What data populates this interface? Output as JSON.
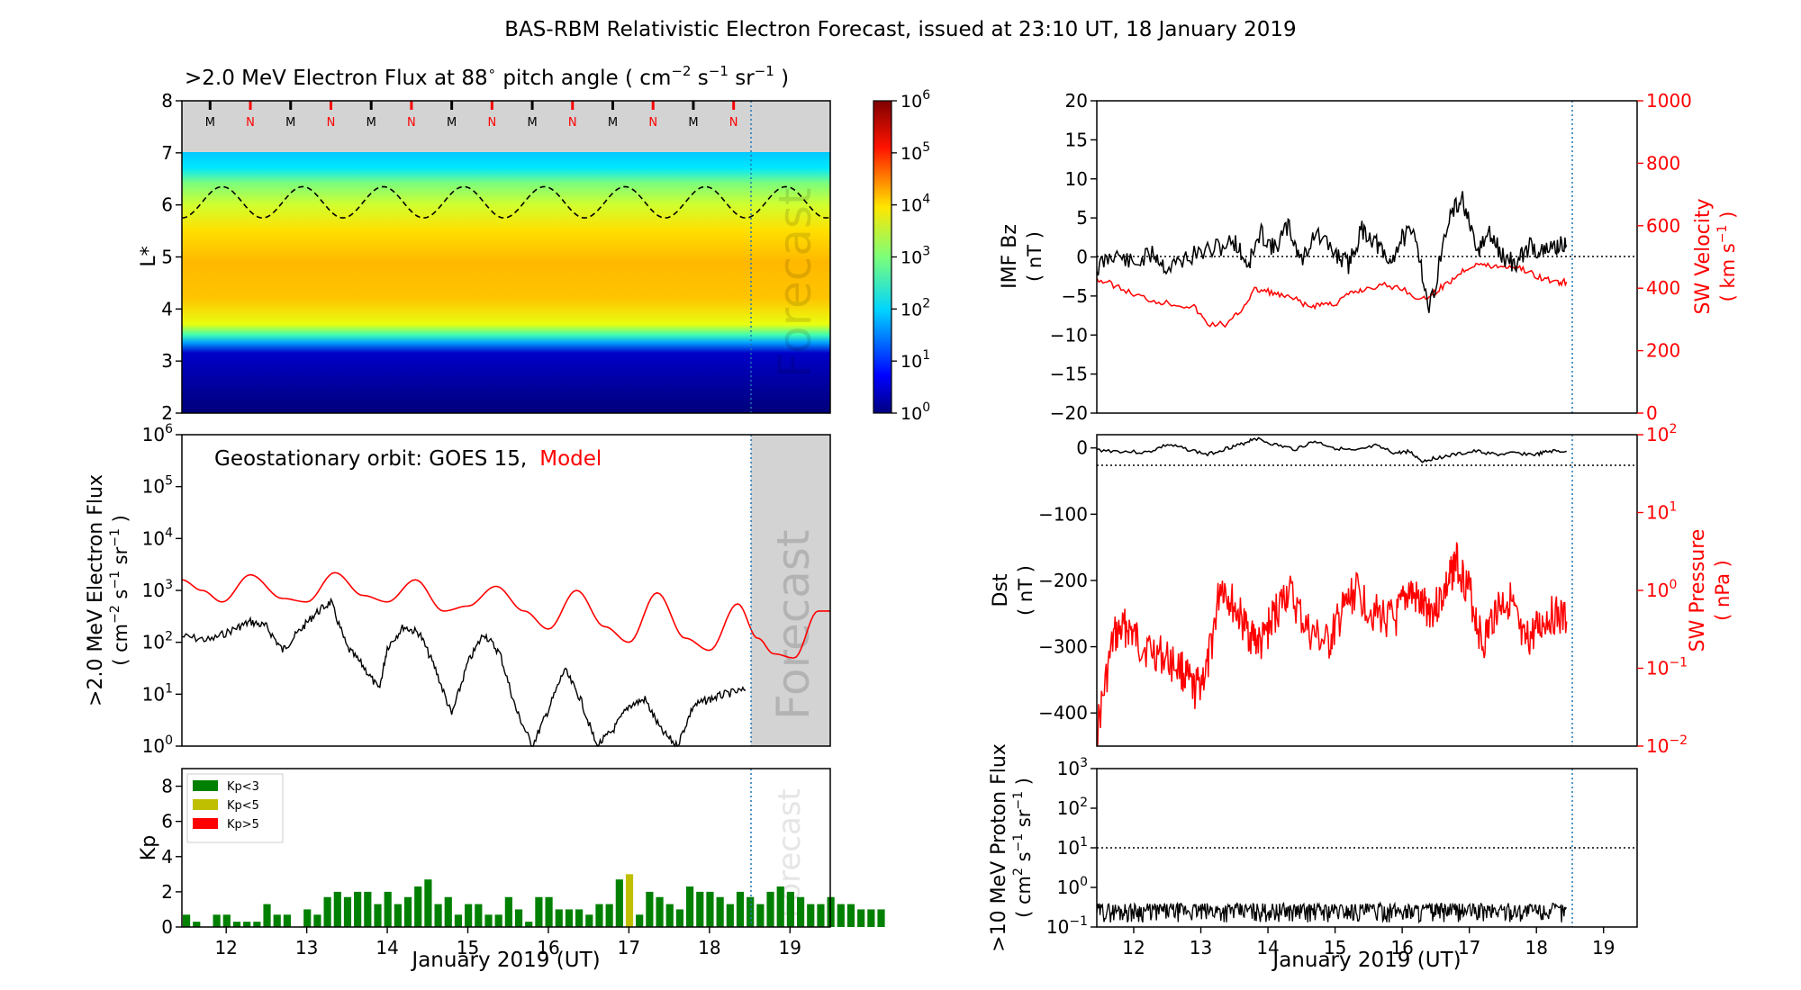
{
  "title": "BAS-RBM Relativistic Electron Forecast, issued at 23:10 UT, 18 January 2019",
  "chart_data": [
    {
      "id": "lstar",
      "type": "heatmap",
      "title": ">2.0 MeV Electron Flux at 88",
      "title_units": "pitch angle ( cm",
      "ylabel": "L*",
      "ylim": [
        2,
        8
      ],
      "yticks": [
        "2",
        "3",
        "4",
        "5",
        "6",
        "7",
        "8"
      ],
      "xlim": [
        11.45,
        19.5
      ],
      "markers": [
        "M",
        "N",
        "M",
        "N",
        "M",
        "N",
        "M",
        "N",
        "M",
        "N",
        "M",
        "N",
        "M",
        "N"
      ],
      "marker_positions": [
        11.8,
        12.3,
        12.8,
        13.3,
        13.8,
        14.3,
        14.8,
        15.3,
        15.8,
        16.3,
        16.8,
        17.3,
        17.8,
        18.3
      ],
      "forecast_label": "Forecast",
      "colorbar_ticks": [
        "10",
        "10",
        "10",
        "10",
        "10",
        "10",
        "10"
      ],
      "colorbar_exponents": [
        "0",
        "1",
        "2",
        "3",
        "4",
        "5",
        "6"
      ]
    },
    {
      "id": "geo",
      "type": "line",
      "ylabel": ">2.0 MeV Electron Flux",
      "ylabel_units": "( cm",
      "yticks": [
        "10",
        "10",
        "10",
        "10",
        "10",
        "10",
        "10"
      ],
      "yexponents": [
        "0",
        "1",
        "2",
        "3",
        "4",
        "5",
        "6"
      ],
      "ylim_log": [
        0,
        6
      ],
      "legend_text": "Geostationary orbit:   GOES 15,",
      "legend_model": "Model",
      "forecast_label": "Forecast",
      "series": [
        {
          "name": "GOES 15",
          "color": "#000000",
          "x": [
            11.45,
            11.8,
            12.1,
            12.3,
            12.5,
            12.7,
            12.9,
            13.1,
            13.3,
            13.5,
            13.7,
            13.9,
            14.0,
            14.2,
            14.4,
            14.6,
            14.8,
            15.0,
            15.2,
            15.4,
            15.6,
            15.8,
            16.0,
            16.2,
            16.4,
            16.6,
            16.8,
            17.0,
            17.2,
            17.4,
            17.6,
            17.8,
            18.0,
            18.2,
            18.45
          ],
          "y": [
            130,
            110,
            180,
            250,
            200,
            70,
            160,
            350,
            600,
            80,
            35,
            12,
            80,
            200,
            150,
            30,
            4,
            40,
            150,
            60,
            5,
            1,
            5,
            30,
            8,
            1,
            2,
            6,
            8,
            2,
            1,
            6,
            8,
            10,
            12
          ]
        },
        {
          "name": "Model",
          "color": "#ff0000",
          "x": [
            11.45,
            11.7,
            11.95,
            12.3,
            12.7,
            13.0,
            13.35,
            13.7,
            14.0,
            14.35,
            14.7,
            15.0,
            15.35,
            15.7,
            16.0,
            16.35,
            16.7,
            17.0,
            17.35,
            17.7,
            18.0,
            18.35,
            18.6,
            18.8,
            19.05,
            19.35,
            19.5
          ],
          "y": [
            1600,
            1000,
            600,
            2000,
            700,
            600,
            2200,
            800,
            600,
            1600,
            400,
            500,
            1200,
            400,
            180,
            1000,
            200,
            100,
            900,
            120,
            70,
            550,
            120,
            60,
            50,
            400,
            400
          ]
        }
      ]
    },
    {
      "id": "kp",
      "type": "bar",
      "ylabel": "Kp",
      "ylim": [
        0,
        9
      ],
      "yticks": [
        "0",
        "2",
        "4",
        "6",
        "8"
      ],
      "xticks": [
        "12",
        "13",
        "14",
        "15",
        "16",
        "17",
        "18",
        "19"
      ],
      "xlabel": "January 2019 (UT)",
      "forecast_label": "Forecast",
      "legend": [
        {
          "label": "Kp<3",
          "color": "#008000"
        },
        {
          "label": "Kp<5",
          "color": "#bfbf00"
        },
        {
          "label": "Kp>5",
          "color": "#ff0000"
        }
      ],
      "values": [
        0.7,
        0.3,
        0,
        0.7,
        0.7,
        0.3,
        0.3,
        0.3,
        1.3,
        0.7,
        0.7,
        0,
        1.0,
        0.7,
        1.7,
        2.0,
        1.7,
        2.0,
        2.0,
        1.3,
        2.0,
        1.3,
        1.7,
        2.3,
        2.7,
        1.3,
        1.7,
        0.7,
        1.3,
        1.3,
        0.7,
        0.7,
        1.7,
        1.0,
        0.3,
        1.7,
        1.7,
        1.0,
        1.0,
        1.0,
        0.7,
        1.3,
        1.3,
        2.7,
        3.0,
        0.7,
        2.0,
        1.7,
        1.3,
        1.0,
        2.3,
        2.0,
        2.0,
        1.7,
        1.3,
        2.0,
        1.7,
        1.3,
        2.0,
        2.3,
        2.0,
        1.7,
        1.3,
        1.3,
        1.7,
        1.3,
        1.3,
        1.0,
        1.0,
        1.0
      ]
    },
    {
      "id": "imf",
      "type": "line",
      "ylabel": "IMF Bz",
      "ylabel_units": "( nT )",
      "ylim": [
        -20,
        20
      ],
      "yticks": [
        "-20",
        "-15",
        "-10",
        "-5",
        "0",
        "5",
        "10",
        "15",
        "20"
      ],
      "y2label": "SW Velocity",
      "y2label_units": "( km s",
      "y2lim": [
        0,
        1000
      ],
      "y2ticks": [
        "0",
        "200",
        "400",
        "600",
        "800",
        "1000"
      ],
      "series": [
        {
          "name": "IMF Bz",
          "color": "#000000",
          "x": [
            11.45,
            11.7,
            12.0,
            12.3,
            12.5,
            12.8,
            13.2,
            13.5,
            13.7,
            13.9,
            14.1,
            14.3,
            14.5,
            14.7,
            15.0,
            15.2,
            15.4,
            15.6,
            15.8,
            16.0,
            16.2,
            16.4,
            16.7,
            16.9,
            17.1,
            17.3,
            17.5,
            17.7,
            17.9,
            18.1,
            18.3,
            18.45
          ],
          "y": [
            -1.5,
            0.5,
            -1.0,
            0.5,
            -1.5,
            0.0,
            1.0,
            2.0,
            -1.0,
            3.0,
            1.0,
            4.0,
            -0.5,
            3.0,
            0.5,
            -1.0,
            3.5,
            2.0,
            -1.0,
            2.5,
            3.0,
            -7.0,
            5.0,
            7.5,
            0.5,
            3.0,
            0.0,
            -1.0,
            1.5,
            0.5,
            1.5,
            1.5
          ]
        },
        {
          "name": "SW Velocity",
          "color": "#ff0000",
          "x": [
            11.45,
            11.7,
            12.0,
            12.3,
            12.6,
            12.9,
            13.1,
            13.4,
            13.6,
            13.8,
            14.0,
            14.2,
            14.4,
            14.6,
            14.8,
            15.0,
            15.2,
            15.4,
            15.7,
            16.0,
            16.3,
            16.5,
            16.7,
            16.9,
            17.1,
            17.3,
            17.5,
            17.7,
            17.9,
            18.1,
            18.3,
            18.45
          ],
          "y": [
            430,
            410,
            380,
            360,
            350,
            340,
            285,
            285,
            330,
            395,
            390,
            375,
            365,
            340,
            350,
            350,
            380,
            395,
            410,
            400,
            360,
            390,
            420,
            455,
            480,
            470,
            470,
            470,
            450,
            430,
            420,
            420
          ]
        }
      ]
    },
    {
      "id": "dst",
      "type": "line",
      "ylabel": "Dst",
      "ylabel_units": "( nT )",
      "ylim": [
        -450,
        20
      ],
      "yticks": [
        "-400",
        "-300",
        "-200",
        "-100",
        "0"
      ],
      "y2label": "SW Pressure",
      "y2label_units": "( nPa )",
      "y2ticks": [
        "10",
        "10",
        "10",
        "10",
        "10"
      ],
      "y2exponents": [
        "-2",
        "-1",
        "0",
        "1",
        "2"
      ],
      "series": [
        {
          "name": "Dst",
          "color": "#000000",
          "x": [
            11.45,
            11.8,
            12.2,
            12.5,
            12.8,
            13.1,
            13.4,
            13.6,
            13.8,
            14.1,
            14.4,
            14.7,
            15.0,
            15.3,
            15.6,
            15.9,
            16.1,
            16.3,
            16.5,
            16.8,
            17.1,
            17.4,
            17.7,
            18.0,
            18.2,
            18.45
          ],
          "y": [
            -3,
            -5,
            -7,
            5,
            -2,
            -10,
            0,
            5,
            15,
            5,
            -2,
            10,
            0,
            -5,
            3,
            -8,
            -5,
            -20,
            -15,
            -10,
            -5,
            -10,
            -8,
            -10,
            -5,
            -5
          ]
        },
        {
          "name": "SW Pressure",
          "color": "#ff0000",
          "x": [
            11.45,
            11.7,
            11.9,
            12.1,
            12.4,
            12.7,
            12.9,
            13.1,
            13.3,
            13.5,
            13.7,
            13.9,
            14.1,
            14.3,
            14.6,
            14.9,
            15.1,
            15.3,
            15.6,
            15.9,
            16.1,
            16.3,
            16.5,
            16.7,
            16.8,
            17.0,
            17.2,
            17.4,
            17.6,
            17.8,
            18.0,
            18.2,
            18.45
          ],
          "y": [
            0.015,
            0.25,
            0.35,
            0.2,
            0.15,
            0.1,
            0.05,
            0.1,
            1.3,
            0.6,
            0.3,
            0.2,
            0.5,
            1.0,
            0.3,
            0.2,
            0.5,
            1.0,
            0.5,
            0.4,
            1.0,
            0.6,
            0.6,
            1.3,
            2.5,
            1.0,
            0.2,
            0.6,
            0.8,
            0.2,
            0.3,
            0.5,
            0.4
          ]
        }
      ]
    },
    {
      "id": "proton",
      "type": "line",
      "ylabel": ">10 MeV Proton Flux",
      "ylabel_units": "( cm",
      "yticks": [
        "10",
        "10",
        "10",
        "10",
        "10"
      ],
      "yexponents": [
        "-1",
        "0",
        "1",
        "2",
        "3"
      ],
      "ylim_log": [
        -1,
        3
      ],
      "threshold": 10,
      "xticks": [
        "12",
        "13",
        "14",
        "15",
        "16",
        "17",
        "18",
        "19"
      ],
      "xlabel": "January 2019 (UT)",
      "series": [
        {
          "name": "Proton Flux",
          "color": "#000000",
          "typical": 0.22,
          "range": [
            0.13,
            0.4
          ]
        }
      ]
    }
  ]
}
